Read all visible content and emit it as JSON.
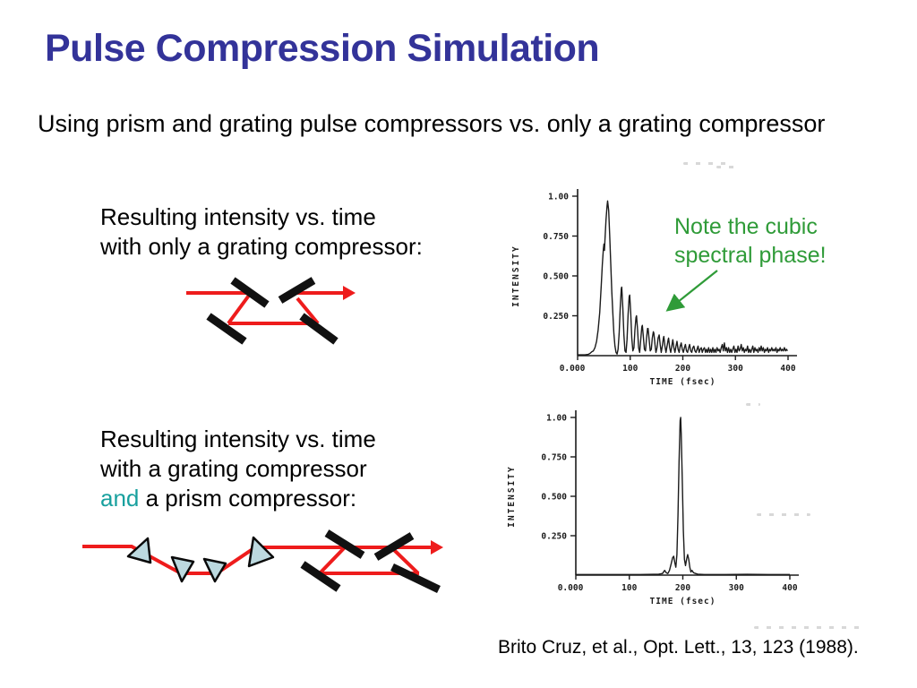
{
  "slide": {
    "title": "Pulse Compression Simulation",
    "subtitle": "Using prism and grating pulse compressors vs. only a grating compressor",
    "citation": "Brito Cruz, et al., Opt. Lett., 13, 123 (1988)."
  },
  "captions": {
    "grating_only": [
      "Resulting intensity vs. time",
      "with only a grating compressor:"
    ],
    "grating_and_prism_l1": "Resulting intensity vs. time",
    "grating_and_prism_l2": "with a grating compressor",
    "and_word": "and",
    "prism_rest": " a prism compressor:"
  },
  "note": {
    "line1": "Note the cubic",
    "line2": "spectral phase!"
  },
  "colors": {
    "title": "#333399",
    "text": "#000000",
    "accent_teal": "#18A09E",
    "note_green": "#2F9B38",
    "beam_red": "#EE1C1C",
    "grating_black": "#111111",
    "prism_fill": "#BCD9DF",
    "plot_ink": "#1B1B1B"
  },
  "chart_data": [
    {
      "type": "line",
      "xlabel": "TIME (fsec)",
      "ylabel": "INTENSITY",
      "xlim": [
        0,
        400
      ],
      "ylim": [
        0,
        1.0
      ],
      "x_ticks": [
        {
          "v": 0,
          "label": "0.000"
        },
        {
          "v": 100,
          "label": "100"
        },
        {
          "v": 200,
          "label": "200"
        },
        {
          "v": 300,
          "label": "300"
        },
        {
          "v": 400,
          "label": "400"
        }
      ],
      "y_ticks": [
        {
          "v": 1.0,
          "label": "1.00"
        },
        {
          "v": 0.75,
          "label": "0.750"
        },
        {
          "v": 0.5,
          "label": "0.500"
        },
        {
          "v": 0.25,
          "label": "0.250"
        }
      ],
      "points": [
        [
          0,
          0.005
        ],
        [
          14,
          0.005
        ],
        [
          20,
          0.008
        ],
        [
          24,
          0.015
        ],
        [
          27,
          0.025
        ],
        [
          30,
          0.03
        ],
        [
          33,
          0.05
        ],
        [
          36,
          0.09
        ],
        [
          39,
          0.16
        ],
        [
          42,
          0.27
        ],
        [
          45,
          0.44
        ],
        [
          47,
          0.57
        ],
        [
          49,
          0.67
        ],
        [
          50,
          0.7
        ],
        [
          51,
          0.66
        ],
        [
          52,
          0.72
        ],
        [
          54,
          0.85
        ],
        [
          56,
          0.94
        ],
        [
          57,
          0.97
        ],
        [
          59,
          0.91
        ],
        [
          61,
          0.76
        ],
        [
          63,
          0.58
        ],
        [
          65,
          0.4
        ],
        [
          67,
          0.26
        ],
        [
          69,
          0.14
        ],
        [
          71,
          0.06
        ],
        [
          73,
          0.02
        ],
        [
          75,
          0.01
        ],
        [
          77,
          0.04
        ],
        [
          79,
          0.14
        ],
        [
          81,
          0.3
        ],
        [
          83,
          0.42
        ],
        [
          84,
          0.43
        ],
        [
          86,
          0.3
        ],
        [
          88,
          0.13
        ],
        [
          90,
          0.03
        ],
        [
          92,
          0.02
        ],
        [
          94,
          0.1
        ],
        [
          96,
          0.26
        ],
        [
          98,
          0.37
        ],
        [
          99,
          0.38
        ],
        [
          101,
          0.27
        ],
        [
          103,
          0.11
        ],
        [
          105,
          0.03
        ],
        [
          107,
          0.05
        ],
        [
          109,
          0.16
        ],
        [
          111,
          0.24
        ],
        [
          112,
          0.25
        ],
        [
          114,
          0.16
        ],
        [
          116,
          0.05
        ],
        [
          118,
          0.02
        ],
        [
          120,
          0.1
        ],
        [
          122,
          0.18
        ],
        [
          123,
          0.19
        ],
        [
          125,
          0.12
        ],
        [
          127,
          0.04
        ],
        [
          129,
          0.03
        ],
        [
          131,
          0.11
        ],
        [
          133,
          0.17
        ],
        [
          134,
          0.17
        ],
        [
          136,
          0.1
        ],
        [
          138,
          0.03
        ],
        [
          140,
          0.04
        ],
        [
          142,
          0.11
        ],
        [
          144,
          0.15
        ],
        [
          145,
          0.14
        ],
        [
          147,
          0.07
        ],
        [
          149,
          0.02
        ],
        [
          151,
          0.05
        ],
        [
          153,
          0.11
        ],
        [
          155,
          0.13
        ],
        [
          157,
          0.07
        ],
        [
          159,
          0.02
        ],
        [
          161,
          0.06
        ],
        [
          163,
          0.11
        ],
        [
          164,
          0.12
        ],
        [
          166,
          0.06
        ],
        [
          168,
          0.02
        ],
        [
          170,
          0.06
        ],
        [
          172,
          0.1
        ],
        [
          173,
          0.11
        ],
        [
          175,
          0.05
        ],
        [
          177,
          0.02
        ],
        [
          179,
          0.06
        ],
        [
          181,
          0.1
        ],
        [
          183,
          0.05
        ],
        [
          185,
          0.02
        ],
        [
          187,
          0.06
        ],
        [
          189,
          0.09
        ],
        [
          191,
          0.04
        ],
        [
          193,
          0.02
        ],
        [
          195,
          0.06
        ],
        [
          197,
          0.08
        ],
        [
          199,
          0.04
        ],
        [
          201,
          0.02
        ],
        [
          203,
          0.05
        ],
        [
          205,
          0.07
        ],
        [
          207,
          0.03
        ],
        [
          209,
          0.02
        ],
        [
          211,
          0.05
        ],
        [
          213,
          0.07
        ],
        [
          215,
          0.03
        ],
        [
          217,
          0.02
        ],
        [
          219,
          0.05
        ],
        [
          221,
          0.06
        ],
        [
          223,
          0.03
        ],
        [
          225,
          0.02
        ],
        [
          227,
          0.04
        ],
        [
          229,
          0.06
        ],
        [
          231,
          0.02
        ],
        [
          233,
          0.04
        ],
        [
          235,
          0.05
        ],
        [
          237,
          0.02
        ],
        [
          239,
          0.04
        ],
        [
          241,
          0.05
        ],
        [
          243,
          0.02
        ],
        [
          245,
          0.04
        ],
        [
          247,
          0.02
        ],
        [
          249,
          0.05
        ],
        [
          251,
          0.02
        ],
        [
          253,
          0.04
        ],
        [
          255,
          0.02
        ],
        [
          257,
          0.05
        ],
        [
          259,
          0.02
        ],
        [
          261,
          0.04
        ],
        [
          263,
          0.02
        ],
        [
          265,
          0.05
        ],
        [
          267,
          0.03
        ],
        [
          269,
          0.04
        ],
        [
          271,
          0.02
        ],
        [
          273,
          0.05
        ],
        [
          275,
          0.07
        ],
        [
          277,
          0.03
        ],
        [
          279,
          0.08
        ],
        [
          281,
          0.03
        ],
        [
          283,
          0.05
        ],
        [
          285,
          0.02
        ],
        [
          287,
          0.05
        ],
        [
          289,
          0.02
        ],
        [
          291,
          0.04
        ],
        [
          293,
          0.02
        ],
        [
          295,
          0.04
        ],
        [
          297,
          0.06
        ],
        [
          299,
          0.02
        ],
        [
          301,
          0.04
        ],
        [
          303,
          0.02
        ],
        [
          305,
          0.06
        ],
        [
          307,
          0.03
        ],
        [
          309,
          0.04
        ],
        [
          311,
          0.07
        ],
        [
          313,
          0.03
        ],
        [
          315,
          0.05
        ],
        [
          317,
          0.02
        ],
        [
          319,
          0.04
        ],
        [
          321,
          0.03
        ],
        [
          323,
          0.06
        ],
        [
          325,
          0.02
        ],
        [
          327,
          0.04
        ],
        [
          329,
          0.02
        ],
        [
          331,
          0.04
        ],
        [
          333,
          0.06
        ],
        [
          335,
          0.02
        ],
        [
          337,
          0.05
        ],
        [
          339,
          0.03
        ],
        [
          341,
          0.04
        ],
        [
          343,
          0.02
        ],
        [
          345,
          0.05
        ],
        [
          347,
          0.03
        ],
        [
          349,
          0.06
        ],
        [
          351,
          0.03
        ],
        [
          353,
          0.05
        ],
        [
          355,
          0.02
        ],
        [
          357,
          0.04
        ],
        [
          359,
          0.03
        ],
        [
          361,
          0.05
        ],
        [
          363,
          0.02
        ],
        [
          365,
          0.04
        ],
        [
          367,
          0.03
        ],
        [
          369,
          0.05
        ],
        [
          371,
          0.03
        ],
        [
          373,
          0.04
        ],
        [
          375,
          0.03
        ],
        [
          377,
          0.05
        ],
        [
          379,
          0.02
        ],
        [
          381,
          0.04
        ],
        [
          383,
          0.03
        ],
        [
          385,
          0.05
        ],
        [
          387,
          0.03
        ],
        [
          389,
          0.04
        ],
        [
          391,
          0.03
        ],
        [
          393,
          0.05
        ],
        [
          395,
          0.03
        ],
        [
          397,
          0.04
        ],
        [
          399,
          0.03
        ]
      ]
    },
    {
      "type": "line",
      "xlabel": "TIME (fsec)",
      "ylabel": "INTENSITY",
      "xlim": [
        0,
        400
      ],
      "ylim": [
        0,
        1.0
      ],
      "x_ticks": [
        {
          "v": 0,
          "label": "0.000"
        },
        {
          "v": 100,
          "label": "100"
        },
        {
          "v": 200,
          "label": "200"
        },
        {
          "v": 300,
          "label": "300"
        },
        {
          "v": 400,
          "label": "400"
        }
      ],
      "y_ticks": [
        {
          "v": 1.0,
          "label": "1.00"
        },
        {
          "v": 0.75,
          "label": "0.750"
        },
        {
          "v": 0.5,
          "label": "0.500"
        },
        {
          "v": 0.25,
          "label": "0.250"
        }
      ],
      "points": [
        [
          0,
          0.004
        ],
        [
          60,
          0.004
        ],
        [
          120,
          0.004
        ],
        [
          145,
          0.005
        ],
        [
          155,
          0.006
        ],
        [
          162,
          0.01
        ],
        [
          166,
          0.03
        ],
        [
          169,
          0.015
        ],
        [
          172,
          0.01
        ],
        [
          175,
          0.03
        ],
        [
          178,
          0.07
        ],
        [
          181,
          0.11
        ],
        [
          183,
          0.12
        ],
        [
          185,
          0.08
        ],
        [
          187,
          0.05
        ],
        [
          189,
          0.13
        ],
        [
          191,
          0.38
        ],
        [
          193,
          0.72
        ],
        [
          195,
          0.98
        ],
        [
          196,
          1.0
        ],
        [
          197,
          0.9
        ],
        [
          199,
          0.6
        ],
        [
          201,
          0.28
        ],
        [
          203,
          0.1
        ],
        [
          205,
          0.06
        ],
        [
          207,
          0.1
        ],
        [
          209,
          0.13
        ],
        [
          211,
          0.1
        ],
        [
          213,
          0.05
        ],
        [
          215,
          0.02
        ],
        [
          217,
          0.03
        ],
        [
          220,
          0.015
        ],
        [
          224,
          0.01
        ],
        [
          228,
          0.006
        ],
        [
          240,
          0.004
        ],
        [
          280,
          0.004
        ],
        [
          320,
          0.005
        ],
        [
          360,
          0.004
        ],
        [
          400,
          0.004
        ]
      ]
    }
  ]
}
